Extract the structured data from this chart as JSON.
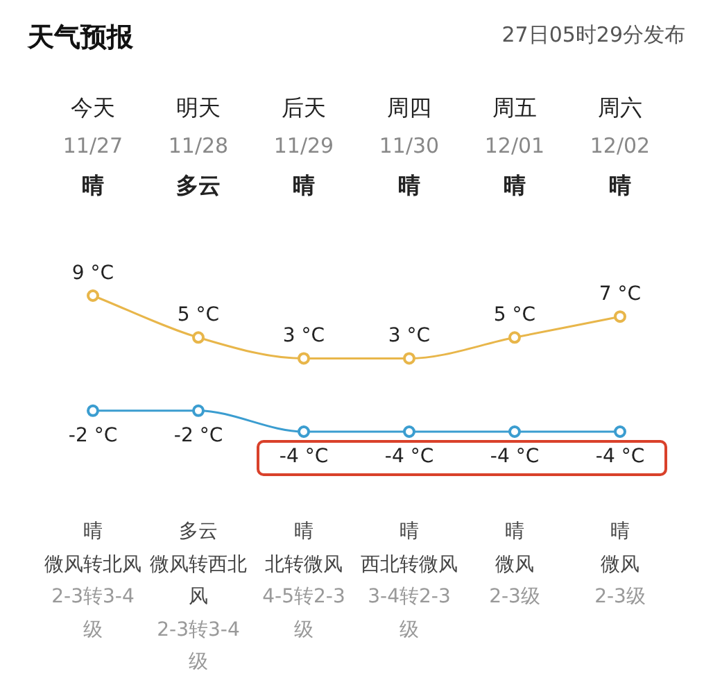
{
  "chart_data": {
    "type": "line",
    "title": "天气预报",
    "subtitle": "27日05时29分发布",
    "categories": [
      "今天",
      "明天",
      "后天",
      "周四",
      "周五",
      "周六"
    ],
    "series": [
      {
        "color": "#e8b64a",
        "values": [
          9,
          5,
          3,
          3,
          5,
          7
        ],
        "value_labels": [
          "9 °C",
          "5 °C",
          "3 °C",
          "3 °C",
          "5 °C",
          "7 °C"
        ]
      },
      {
        "color": "#3b9dd0",
        "values": [
          -2,
          -2,
          -4,
          -4,
          -4,
          -4
        ],
        "value_labels": [
          "-2 °C",
          "-2 °C",
          "-4 °C",
          "-4 °C",
          "-4 °C",
          "-4 °C"
        ]
      }
    ],
    "marker": "circle",
    "annotations": [
      "11/27",
      "11/28",
      "11/29",
      "11/30",
      "12/01",
      "12/02",
      "晴",
      "多云",
      "晴",
      "晴",
      "晴",
      "晴",
      "晴",
      "多云",
      "晴",
      "晴",
      "晴",
      "晴",
      "微风转北风",
      "微风转西北风",
      "北转微风",
      "西北转微风",
      "微风",
      "微风",
      "2-3转3-4级",
      "2-3转3-4级",
      "4-5转2-3级",
      "3-4转2-3级",
      "2-3级",
      "2-3级"
    ]
  }
}
